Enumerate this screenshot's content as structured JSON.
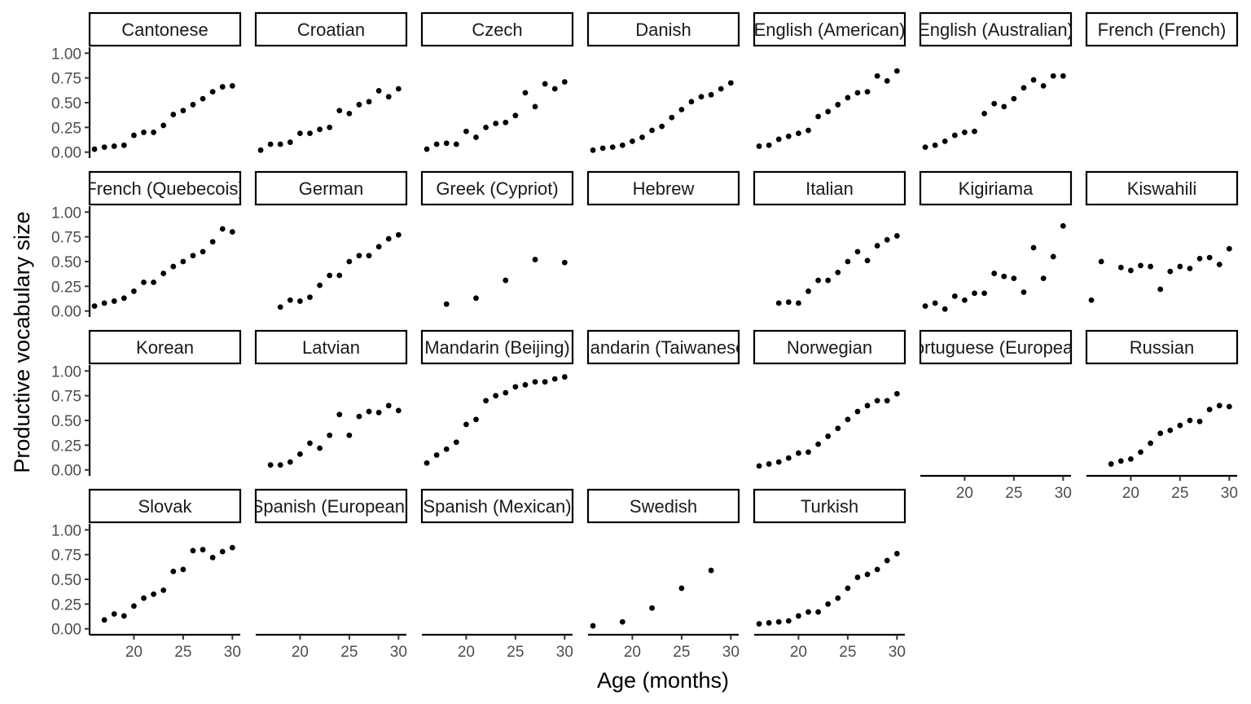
{
  "chart_data": {
    "type": "scatter",
    "xlabel": "Age (months)",
    "ylabel": "Productive vocabulary size",
    "xlim": [
      15.5,
      30.8
    ],
    "ylim": [
      -0.06,
      1.06
    ],
    "x_ticks": [
      20,
      25,
      30
    ],
    "x_tick_labels": [
      "20",
      "25",
      "30"
    ],
    "y_ticks": [
      0,
      0.25,
      0.5,
      0.75,
      1
    ],
    "y_tick_labels": [
      "0.00",
      "0.25",
      "0.50",
      "0.75",
      "1.00"
    ],
    "grid": false,
    "ncol": 7,
    "panels": [
      {
        "name": "Cantonese",
        "x": [
          16,
          17,
          18,
          19,
          20,
          21,
          22,
          23,
          24,
          25,
          26,
          27,
          28,
          29,
          30
        ],
        "y": [
          0.03,
          0.05,
          0.06,
          0.07,
          0.17,
          0.2,
          0.2,
          0.27,
          0.38,
          0.42,
          0.48,
          0.54,
          0.61,
          0.66,
          0.67
        ]
      },
      {
        "name": "Croatian",
        "x": [
          16,
          17,
          18,
          19,
          20,
          21,
          22,
          23,
          24,
          25,
          26,
          27,
          28,
          29,
          30
        ],
        "y": [
          0.02,
          0.08,
          0.08,
          0.1,
          0.19,
          0.19,
          0.23,
          0.25,
          0.42,
          0.39,
          0.48,
          0.51,
          0.62,
          0.56,
          0.64
        ]
      },
      {
        "name": "Czech",
        "x": [
          16,
          17,
          18,
          19,
          20,
          21,
          22,
          23,
          24,
          25,
          26,
          27,
          28,
          29,
          30
        ],
        "y": [
          0.03,
          0.08,
          0.09,
          0.08,
          0.21,
          0.15,
          0.25,
          0.29,
          0.3,
          0.37,
          0.6,
          0.46,
          0.69,
          0.64,
          0.71
        ]
      },
      {
        "name": "Danish",
        "x": [
          16,
          17,
          18,
          19,
          20,
          21,
          22,
          23,
          24,
          25,
          26,
          27,
          28,
          29,
          30
        ],
        "y": [
          0.02,
          0.04,
          0.05,
          0.07,
          0.11,
          0.15,
          0.22,
          0.26,
          0.35,
          0.43,
          0.51,
          0.56,
          0.58,
          0.64,
          0.7
        ]
      },
      {
        "name": "English (American)",
        "x": [
          16,
          17,
          18,
          19,
          20,
          21,
          22,
          23,
          24,
          25,
          26,
          27,
          28,
          29,
          30
        ],
        "y": [
          0.06,
          0.07,
          0.13,
          0.16,
          0.19,
          0.22,
          0.36,
          0.41,
          0.48,
          0.55,
          0.6,
          0.61,
          0.77,
          0.72,
          0.82
        ]
      },
      {
        "name": "English (Australian)",
        "x": [
          16,
          17,
          18,
          19,
          20,
          21,
          22,
          23,
          24,
          25,
          26,
          27,
          28,
          29,
          30
        ],
        "y": [
          0.05,
          0.07,
          0.11,
          0.17,
          0.2,
          0.21,
          0.39,
          0.49,
          0.46,
          0.54,
          0.65,
          0.73,
          0.67,
          0.77,
          0.77
        ]
      },
      {
        "name": "French (French)",
        "x": [],
        "y": []
      },
      {
        "name": "French (Quebecois)",
        "x": [
          16,
          17,
          18,
          19,
          20,
          21,
          22,
          23,
          24,
          25,
          26,
          27,
          28,
          29,
          30
        ],
        "y": [
          0.05,
          0.08,
          0.1,
          0.13,
          0.2,
          0.29,
          0.29,
          0.38,
          0.45,
          0.5,
          0.56,
          0.6,
          0.7,
          0.83,
          0.8
        ]
      },
      {
        "name": "German",
        "x": [
          18,
          19,
          20,
          21,
          22,
          23,
          24,
          25,
          26,
          27,
          28,
          29,
          30
        ],
        "y": [
          0.04,
          0.11,
          0.1,
          0.14,
          0.26,
          0.36,
          0.36,
          0.5,
          0.56,
          0.56,
          0.65,
          0.73,
          0.77
        ]
      },
      {
        "name": "Greek (Cypriot)",
        "x": [
          18,
          21,
          24,
          27,
          30
        ],
        "y": [
          0.07,
          0.13,
          0.31,
          0.52,
          0.49
        ]
      },
      {
        "name": "Hebrew",
        "x": [],
        "y": []
      },
      {
        "name": "Italian",
        "x": [
          18,
          19,
          20,
          21,
          22,
          23,
          24,
          25,
          26,
          27,
          28,
          29,
          30
        ],
        "y": [
          0.08,
          0.09,
          0.08,
          0.2,
          0.31,
          0.31,
          0.39,
          0.5,
          0.6,
          0.51,
          0.66,
          0.72,
          0.76
        ]
      },
      {
        "name": "Kigiriama",
        "x": [
          16,
          17,
          18,
          19,
          20,
          21,
          22,
          23,
          24,
          25,
          26,
          27,
          28,
          29,
          30
        ],
        "y": [
          0.05,
          0.08,
          0.02,
          0.15,
          0.11,
          0.18,
          0.18,
          0.38,
          0.35,
          0.33,
          0.19,
          0.64,
          0.33,
          0.55,
          0.86
        ]
      },
      {
        "name": "Kiswahili",
        "x": [
          16,
          17,
          19,
          20,
          21,
          22,
          23,
          24,
          25,
          26,
          27,
          28,
          29,
          30
        ],
        "y": [
          0.11,
          0.5,
          0.44,
          0.41,
          0.46,
          0.45,
          0.22,
          0.4,
          0.45,
          0.43,
          0.53,
          0.54,
          0.47,
          0.63
        ]
      },
      {
        "name": "Korean",
        "x": [],
        "y": []
      },
      {
        "name": "Latvian",
        "x": [
          17,
          18,
          19,
          20,
          21,
          22,
          23,
          24,
          25,
          26,
          27,
          28,
          29,
          30
        ],
        "y": [
          0.05,
          0.05,
          0.08,
          0.16,
          0.27,
          0.22,
          0.35,
          0.56,
          0.35,
          0.54,
          0.59,
          0.58,
          0.65,
          0.6
        ]
      },
      {
        "name": "Mandarin (Beijing)",
        "x": [
          16,
          17,
          18,
          19,
          20,
          21,
          22,
          23,
          24,
          25,
          26,
          27,
          28,
          29,
          30
        ],
        "y": [
          0.07,
          0.15,
          0.21,
          0.28,
          0.46,
          0.51,
          0.7,
          0.75,
          0.78,
          0.84,
          0.86,
          0.89,
          0.89,
          0.92,
          0.94
        ]
      },
      {
        "name": "Mandarin (Taiwanese)",
        "x": [],
        "y": []
      },
      {
        "name": "Norwegian",
        "x": [
          16,
          17,
          18,
          19,
          20,
          21,
          22,
          23,
          24,
          25,
          26,
          27,
          28,
          29,
          30
        ],
        "y": [
          0.04,
          0.06,
          0.08,
          0.12,
          0.17,
          0.18,
          0.26,
          0.34,
          0.42,
          0.51,
          0.59,
          0.65,
          0.7,
          0.7,
          0.77
        ]
      },
      {
        "name": "Portuguese (European)",
        "x": [],
        "y": []
      },
      {
        "name": "Russian",
        "x": [
          18,
          19,
          20,
          21,
          22,
          23,
          24,
          25,
          26,
          27,
          28,
          29,
          30
        ],
        "y": [
          0.06,
          0.09,
          0.11,
          0.18,
          0.27,
          0.37,
          0.4,
          0.45,
          0.5,
          0.49,
          0.61,
          0.65,
          0.64
        ]
      },
      {
        "name": "Slovak",
        "x": [
          17,
          18,
          19,
          20,
          21,
          22,
          23,
          24,
          25,
          26,
          27,
          28,
          29,
          30
        ],
        "y": [
          0.09,
          0.15,
          0.13,
          0.23,
          0.31,
          0.35,
          0.39,
          0.58,
          0.6,
          0.79,
          0.8,
          0.72,
          0.78,
          0.82
        ]
      },
      {
        "name": "Spanish (European)",
        "x": [],
        "y": []
      },
      {
        "name": "Spanish (Mexican)",
        "x": [],
        "y": []
      },
      {
        "name": "Swedish",
        "x": [
          16,
          19,
          22,
          25,
          28
        ],
        "y": [
          0.03,
          0.07,
          0.21,
          0.41,
          0.59
        ]
      },
      {
        "name": "Turkish",
        "x": [
          16,
          17,
          18,
          19,
          20,
          21,
          22,
          23,
          24,
          25,
          26,
          27,
          28,
          29,
          30
        ],
        "y": [
          0.05,
          0.06,
          0.07,
          0.08,
          0.13,
          0.17,
          0.17,
          0.25,
          0.31,
          0.41,
          0.52,
          0.55,
          0.6,
          0.69,
          0.76
        ]
      }
    ]
  }
}
